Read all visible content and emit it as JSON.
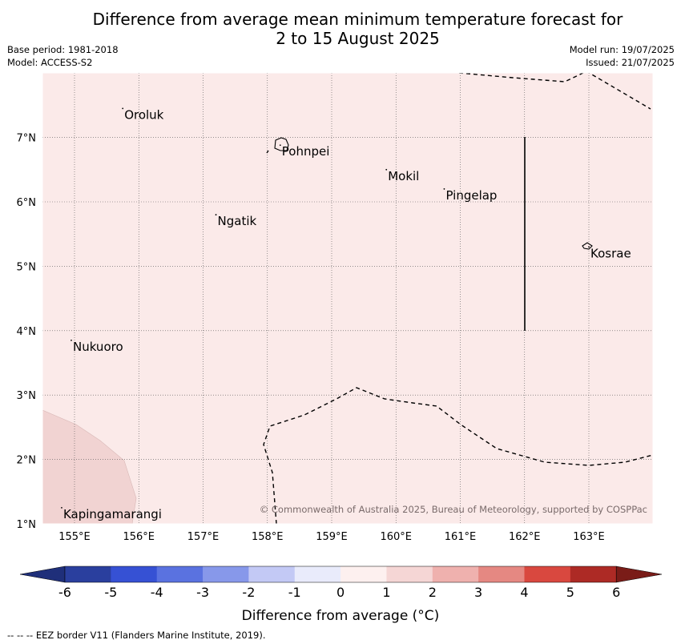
{
  "title": {
    "line1": "Difference from average mean minimum temperature forecast for",
    "line2": "2 to 15 August 2025"
  },
  "meta": {
    "base_period": "Base period: 1981-2018",
    "model": "Model: ACCESS-S2",
    "model_run": "Model run: 19/07/2025",
    "issued": "Issued: 21/07/2025"
  },
  "map": {
    "lon_labels": [
      "155°E",
      "156°E",
      "157°E",
      "158°E",
      "159°E",
      "160°E",
      "161°E",
      "162°E",
      "163°E"
    ],
    "lat_labels": [
      "7°N",
      "6°N",
      "5°N",
      "4°N",
      "3°N",
      "2°N",
      "1°N"
    ],
    "background_color": "#fbeae9",
    "shade_color": "#f1d3d2",
    "places": [
      {
        "name": "Oroluk",
        "lon": 155.75,
        "lat": 7.45
      },
      {
        "name": "Pohnpei",
        "lon": 158.2,
        "lat": 6.88
      },
      {
        "name": "Mokil",
        "lon": 159.85,
        "lat": 6.5
      },
      {
        "name": "Pingelap",
        "lon": 160.75,
        "lat": 6.2
      },
      {
        "name": "Ngatik",
        "lon": 157.2,
        "lat": 5.8
      },
      {
        "name": "Kosrae",
        "lon": 163.0,
        "lat": 5.3
      },
      {
        "name": "Nukuoro",
        "lon": 154.95,
        "lat": 3.85
      },
      {
        "name": "Kapingamarangi",
        "lon": 154.8,
        "lat": 1.25
      }
    ],
    "copyright": "© Commonwealth of Australia 2025, Bureau of Meteorology, supported by COSPPac"
  },
  "colorbar": {
    "ticks": [
      "-6",
      "-5",
      "-4",
      "-3",
      "-2",
      "-1",
      "0",
      "1",
      "2",
      "3",
      "4",
      "5",
      "6"
    ],
    "colors": [
      "#2a3f9e",
      "#3651d4",
      "#5a72e0",
      "#8798ea",
      "#c3c9f5",
      "#e9ebfb",
      "#fdf0ef",
      "#f5d6d5",
      "#efb1ae",
      "#e58882",
      "#d9483f",
      "#ad2a25"
    ],
    "under_color": "#1f2f7a",
    "over_color": "#7a1c18",
    "label": "Difference from average (°C)"
  },
  "footer_note": "--  --  -- EEZ border V11 (Flanders Marine Institute, 2019)."
}
